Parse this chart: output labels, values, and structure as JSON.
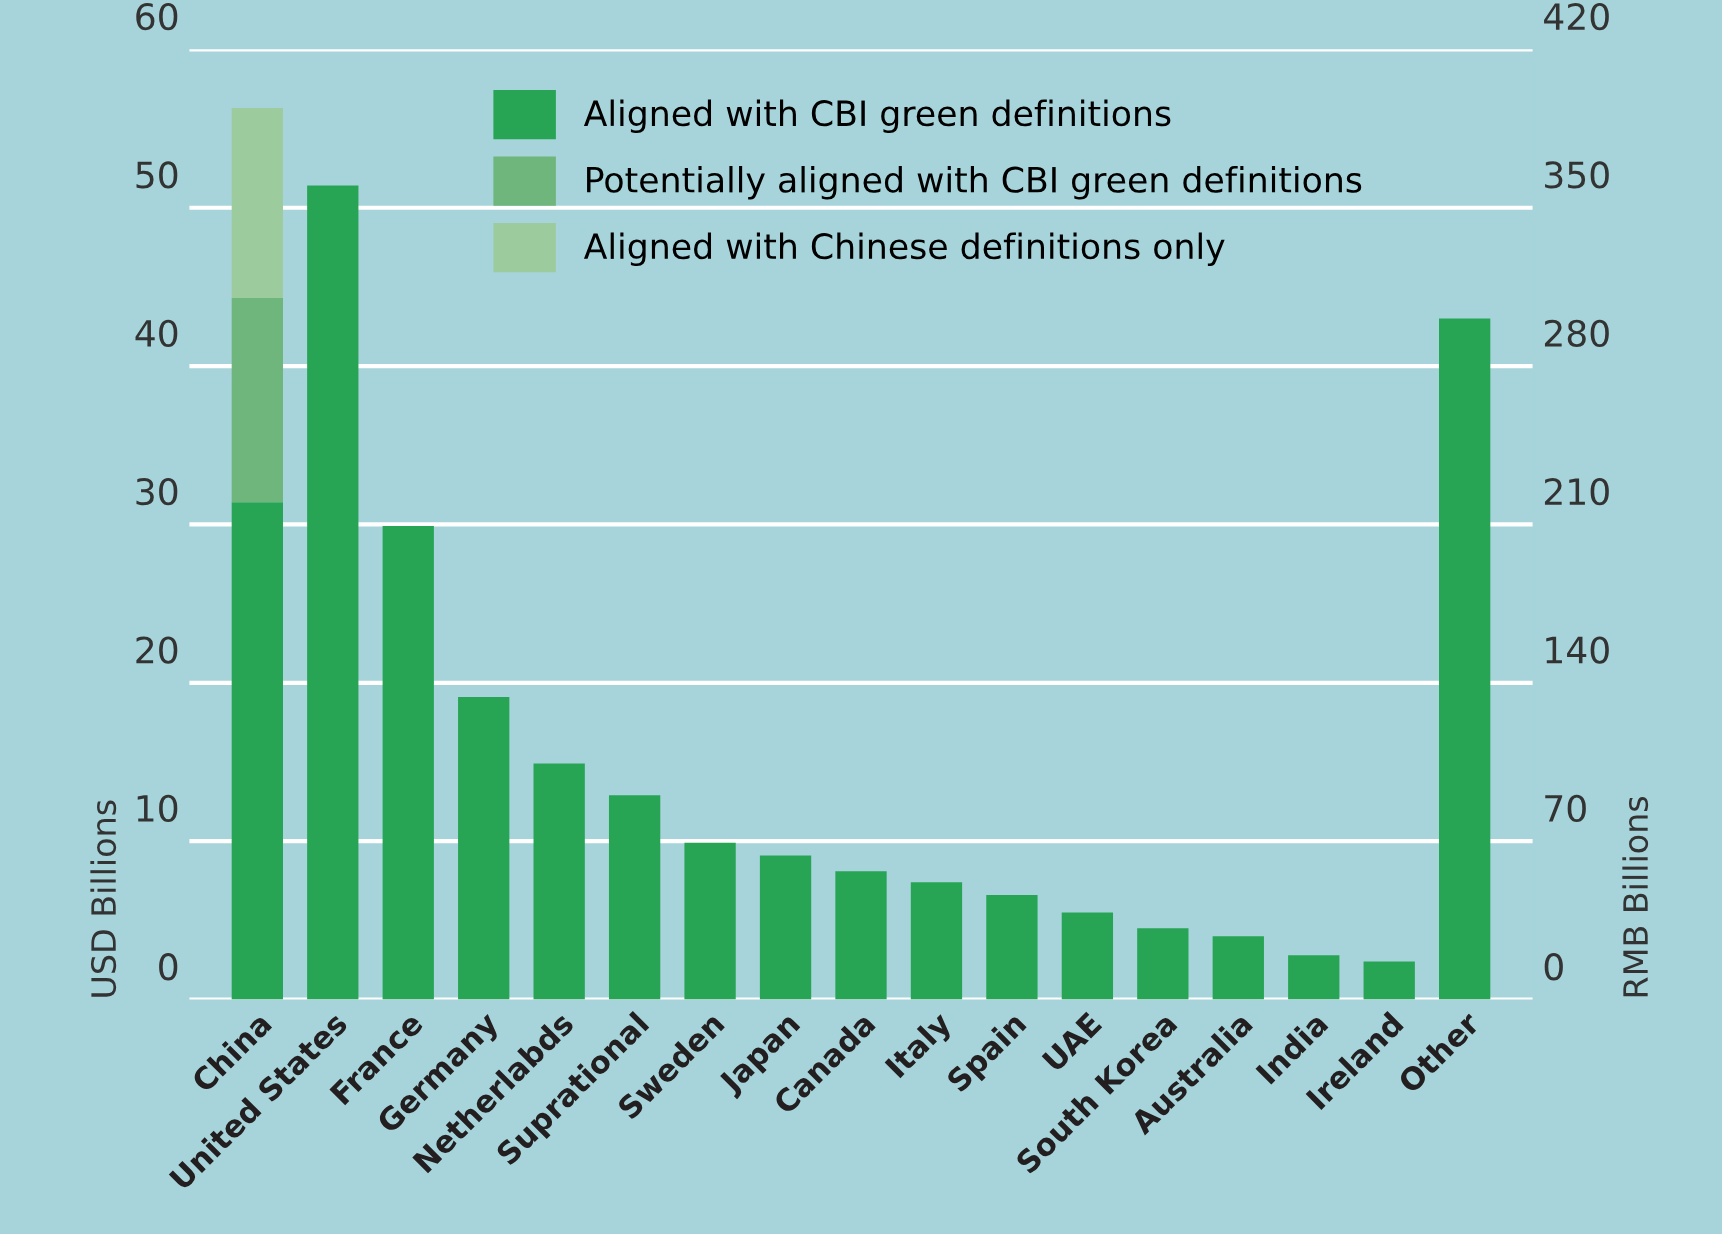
{
  "chart_data": {
    "type": "bar",
    "stacked": true,
    "ylabel": "USD Billions",
    "y2label": "RMB Billions",
    "categories": [
      "China",
      "United States",
      "France",
      "Germany",
      "Netherlabds",
      "Suprational",
      "Sweden",
      "Japan",
      "Canada",
      "Italy",
      "Spain",
      "UAE",
      "South Korea",
      "Australia",
      "India",
      "Ireland",
      "Other"
    ],
    "series": [
      {
        "name": "Aligned with CBI green definitions",
        "color": "#27a555",
        "values": [
          31.4,
          51.4,
          29.9,
          19.1,
          14.9,
          12.9,
          9.9,
          9.1,
          8.1,
          7.4,
          6.6,
          5.5,
          4.5,
          4.0,
          2.8,
          2.4,
          43.0
        ]
      },
      {
        "name": "Potentially aligned with CBI green definitions",
        "color": "#6fb67c",
        "values": [
          12.9,
          null,
          null,
          null,
          null,
          null,
          null,
          null,
          null,
          null,
          null,
          null,
          null,
          null,
          null,
          null,
          null
        ]
      },
      {
        "name": "Aligned with Chinese definitions only",
        "color": "#9ccc9e",
        "values": [
          12.0,
          null,
          null,
          null,
          null,
          null,
          null,
          null,
          null,
          null,
          null,
          null,
          null,
          null,
          null,
          null,
          null
        ]
      }
    ],
    "ylim": [
      0,
      60
    ],
    "yticks": [
      0,
      10,
      20,
      30,
      40,
      50,
      60
    ],
    "y2lim": [
      0,
      420
    ],
    "y2ticks": [
      0,
      70,
      140,
      210,
      280,
      350,
      420
    ],
    "grid": "y",
    "legend": "top"
  }
}
